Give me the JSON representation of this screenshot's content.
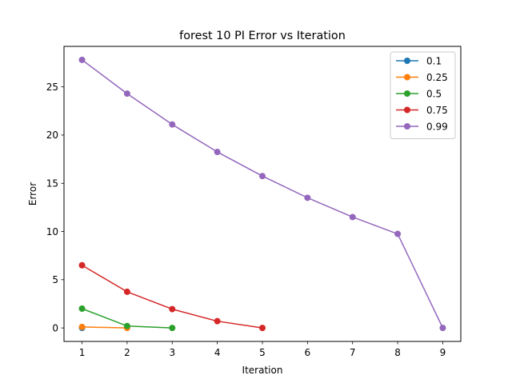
{
  "chart_data": {
    "type": "line",
    "title": "forest 10 PI Error vs Iteration",
    "xlabel": "Iteration",
    "ylabel": "Error",
    "xlim": [
      0.6,
      9.4
    ],
    "ylim": [
      -1.4,
      29.2
    ],
    "xticks": [
      1,
      2,
      3,
      4,
      5,
      6,
      7,
      8,
      9
    ],
    "xtick_labels": [
      "1",
      "2",
      "3",
      "4",
      "5",
      "6",
      "7",
      "8",
      "9"
    ],
    "yticks": [
      0,
      5,
      10,
      15,
      20,
      25
    ],
    "ytick_labels": [
      "0",
      "5",
      "10",
      "15",
      "20",
      "25"
    ],
    "grid": false,
    "legend_position": "top-right",
    "series": [
      {
        "name": "0.1",
        "color": "#1f77b4",
        "x": [
          1
        ],
        "y": [
          0.0
        ]
      },
      {
        "name": "0.25",
        "color": "#ff7f0e",
        "x": [
          1,
          2
        ],
        "y": [
          0.1,
          0.0
        ]
      },
      {
        "name": "0.5",
        "color": "#2ca02c",
        "x": [
          1,
          2,
          3
        ],
        "y": [
          2.0,
          0.2,
          0.0
        ]
      },
      {
        "name": "0.75",
        "color": "#d62728",
        "x": [
          1,
          2,
          3,
          4,
          5
        ],
        "y": [
          6.5,
          3.75,
          1.95,
          0.7,
          0.0
        ]
      },
      {
        "name": "0.99",
        "color": "#9467bd",
        "x": [
          1,
          2,
          3,
          4,
          5,
          6,
          7,
          8,
          9
        ],
        "y": [
          27.8,
          24.3,
          21.1,
          18.25,
          15.75,
          13.5,
          11.5,
          9.75,
          0.0
        ]
      }
    ]
  }
}
